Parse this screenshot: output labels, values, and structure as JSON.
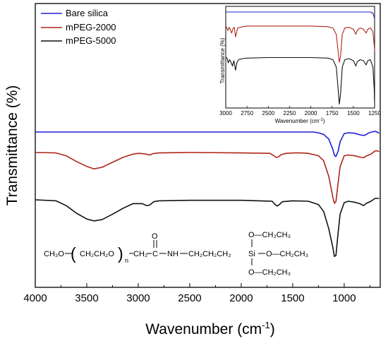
{
  "chart_data": [
    {
      "type": "line",
      "xlabel": "Wavenumber (cm⁻¹)",
      "xlabel_main": "Wavenumber (cm",
      "xlabel_sup": "-1",
      "xlabel_close": ")",
      "ylabel": "Transmittance (%)",
      "xlim": [
        4000,
        650
      ],
      "x_reversed": true,
      "xticks": [
        "4000",
        "3500",
        "3000",
        "2500",
        "2000",
        "1500",
        "1000"
      ],
      "y_ticks_shown": false,
      "legend": {
        "placement": "top-left",
        "entries": [
          "Bare silica",
          "mPEG-2000",
          "mPEG-5000"
        ]
      },
      "series": [
        {
          "name": "Bare silica",
          "color": "#1f1fd6",
          "points": [
            [
              4000,
              0.0
            ],
            [
              3500,
              0.0
            ],
            [
              3000,
              0.0
            ],
            [
              2500,
              0.0
            ],
            [
              2000,
              0.0
            ],
            [
              1500,
              0.0
            ],
            [
              1300,
              0.0
            ],
            [
              1250,
              -2
            ],
            [
              1200,
              -6
            ],
            [
              1150,
              -18
            ],
            [
              1110,
              -45
            ],
            [
              1095,
              -60
            ],
            [
              1080,
              -63
            ],
            [
              1060,
              -50
            ],
            [
              1040,
              -25
            ],
            [
              1000,
              -4
            ],
            [
              960,
              -2
            ],
            [
              900,
              -3
            ],
            [
              850,
              -7
            ],
            [
              810,
              -9
            ],
            [
              790,
              -7
            ],
            [
              760,
              -2
            ],
            [
              700,
              2
            ],
            [
              680,
              0
            ],
            [
              660,
              -3
            ]
          ]
        },
        {
          "name": "mPEG-2000",
          "color": "#b02418",
          "points": [
            [
              4000,
              0.0
            ],
            [
              3800,
              -1
            ],
            [
              3700,
              -8
            ],
            [
              3600,
              -22
            ],
            [
              3500,
              -34
            ],
            [
              3430,
              -40
            ],
            [
              3350,
              -36
            ],
            [
              3250,
              -24
            ],
            [
              3150,
              -12
            ],
            [
              3050,
              -4
            ],
            [
              3000,
              -2
            ],
            [
              2950,
              -3
            ],
            [
              2885,
              -6
            ],
            [
              2860,
              -3
            ],
            [
              2800,
              -1
            ],
            [
              2500,
              0
            ],
            [
              2000,
              -1
            ],
            [
              1720,
              -2
            ],
            [
              1690,
              -7
            ],
            [
              1660,
              -12
            ],
            [
              1640,
              -11
            ],
            [
              1610,
              -5
            ],
            [
              1560,
              -2
            ],
            [
              1480,
              -1
            ],
            [
              1420,
              -1
            ],
            [
              1350,
              -2
            ],
            [
              1250,
              -8
            ],
            [
              1200,
              -20
            ],
            [
              1150,
              -58
            ],
            [
              1110,
              -110
            ],
            [
              1095,
              -124
            ],
            [
              1080,
              -120
            ],
            [
              1060,
              -75
            ],
            [
              1040,
              -35
            ],
            [
              1000,
              -8
            ],
            [
              960,
              -6
            ],
            [
              900,
              -8
            ],
            [
              850,
              -11
            ],
            [
              810,
              -13
            ],
            [
              790,
              -9
            ],
            [
              740,
              -4
            ],
            [
              700,
              4
            ],
            [
              680,
              4
            ],
            [
              660,
              2
            ]
          ]
        },
        {
          "name": "mPEG-5000",
          "color": "#111111",
          "points": [
            [
              4000,
              0.0
            ],
            [
              3800,
              -2
            ],
            [
              3700,
              -12
            ],
            [
              3600,
              -28
            ],
            [
              3500,
              -40
            ],
            [
              3430,
              -44
            ],
            [
              3350,
              -41
            ],
            [
              3250,
              -30
            ],
            [
              3150,
              -18
            ],
            [
              3050,
              -8
            ],
            [
              2960,
              -8
            ],
            [
              2920,
              -12
            ],
            [
              2890,
              -11
            ],
            [
              2850,
              -4
            ],
            [
              2800,
              -2
            ],
            [
              2500,
              -1
            ],
            [
              2000,
              -1
            ],
            [
              1700,
              -3
            ],
            [
              1670,
              -10
            ],
            [
              1650,
              -13
            ],
            [
              1630,
              -10
            ],
            [
              1600,
              -4
            ],
            [
              1500,
              -2
            ],
            [
              1350,
              -3
            ],
            [
              1250,
              -10
            ],
            [
              1200,
              -24
            ],
            [
              1150,
              -60
            ],
            [
              1110,
              -100
            ],
            [
              1095,
              -118
            ],
            [
              1080,
              -116
            ],
            [
              1060,
              -70
            ],
            [
              1040,
              -30
            ],
            [
              1000,
              -6
            ],
            [
              960,
              -3
            ],
            [
              900,
              -5
            ],
            [
              850,
              -8
            ],
            [
              810,
              -12
            ],
            [
              790,
              -8
            ],
            [
              740,
              -3
            ],
            [
              700,
              3
            ],
            [
              680,
              3
            ],
            [
              660,
              3
            ]
          ]
        }
      ]
    },
    {
      "type": "line",
      "inset": true,
      "xlabel": "Wavenumber (cm⁻¹)",
      "xlabel_main": "Wavenumber (cm",
      "xlabel_sup": "-1",
      "xlabel_close": ")",
      "ylabel": "Transmittance (%)",
      "xlim": [
        3000,
        1250
      ],
      "x_reversed": true,
      "xticks": [
        "3000",
        "2750",
        "2500",
        "2250",
        "2000",
        "1750",
        "1500",
        "1250"
      ],
      "series": [
        {
          "name": "Bare silica",
          "color": "#1f1fd6",
          "points": [
            [
              3000,
              0
            ],
            [
              2750,
              0
            ],
            [
              2500,
              0
            ],
            [
              2250,
              0
            ],
            [
              2000,
              0
            ],
            [
              1750,
              0
            ],
            [
              1500,
              0
            ],
            [
              1350,
              0
            ],
            [
              1300,
              0
            ],
            [
              1270,
              -2
            ],
            [
              1255,
              -8
            ],
            [
              1250,
              -12
            ]
          ]
        },
        {
          "name": "mPEG-2000",
          "color": "#b02418",
          "points": [
            [
              3000,
              -1
            ],
            [
              2990,
              -3
            ],
            [
              2975,
              -8
            ],
            [
              2960,
              -3
            ],
            [
              2945,
              -7
            ],
            [
              2930,
              -12
            ],
            [
              2915,
              -5
            ],
            [
              2900,
              -3
            ],
            [
              2885,
              -18
            ],
            [
              2870,
              -10
            ],
            [
              2860,
              -4
            ],
            [
              2800,
              -2
            ],
            [
              2750,
              -1
            ],
            [
              2500,
              -1
            ],
            [
              2250,
              -1
            ],
            [
              2000,
              -1
            ],
            [
              1800,
              -2
            ],
            [
              1740,
              -4
            ],
            [
              1700,
              -14
            ],
            [
              1680,
              -40
            ],
            [
              1665,
              -58
            ],
            [
              1650,
              -48
            ],
            [
              1630,
              -14
            ],
            [
              1600,
              -4
            ],
            [
              1550,
              -3
            ],
            [
              1500,
              -6
            ],
            [
              1470,
              -14
            ],
            [
              1455,
              -8
            ],
            [
              1420,
              -4
            ],
            [
              1380,
              -6
            ],
            [
              1350,
              -12
            ],
            [
              1330,
              -6
            ],
            [
              1300,
              -4
            ],
            [
              1270,
              -10
            ],
            [
              1255,
              -30
            ],
            [
              1250,
              -40
            ]
          ]
        },
        {
          "name": "mPEG-5000",
          "color": "#111111",
          "points": [
            [
              3000,
              -1
            ],
            [
              2985,
              -3
            ],
            [
              2970,
              -12
            ],
            [
              2955,
              -6
            ],
            [
              2940,
              -10
            ],
            [
              2920,
              -18
            ],
            [
              2905,
              -8
            ],
            [
              2885,
              -26
            ],
            [
              2870,
              -12
            ],
            [
              2850,
              -6
            ],
            [
              2800,
              -4
            ],
            [
              2750,
              -3
            ],
            [
              2500,
              -2
            ],
            [
              2250,
              -2
            ],
            [
              2000,
              -2
            ],
            [
              1800,
              -3
            ],
            [
              1740,
              -6
            ],
            [
              1700,
              -20
            ],
            [
              1680,
              -60
            ],
            [
              1665,
              -90
            ],
            [
              1650,
              -70
            ],
            [
              1630,
              -20
            ],
            [
              1600,
              -6
            ],
            [
              1550,
              -4
            ],
            [
              1500,
              -8
            ],
            [
              1470,
              -18
            ],
            [
              1455,
              -10
            ],
            [
              1420,
              -6
            ],
            [
              1380,
              -8
            ],
            [
              1350,
              -16
            ],
            [
              1330,
              -8
            ],
            [
              1300,
              -6
            ],
            [
              1270,
              -20
            ],
            [
              1255,
              -60
            ],
            [
              1250,
              -90
            ]
          ]
        }
      ]
    }
  ],
  "structure": {
    "left": "CH₃O",
    "paren_open": "(",
    "repeat": "CH₂CH₂O",
    "paren_close": ")",
    "subscript": "n",
    "after_n": "CH₂",
    "carbonyl_c": "C",
    "carbonyl_o": "O",
    "linker": "NH",
    "chain": "CH₂CH₂CH₂",
    "si": "Si",
    "oet_top": "O—CH₂CH₃",
    "oet_right": "O—CH₂CH₃",
    "oet_bottom": "O—CH₂CH₃"
  }
}
